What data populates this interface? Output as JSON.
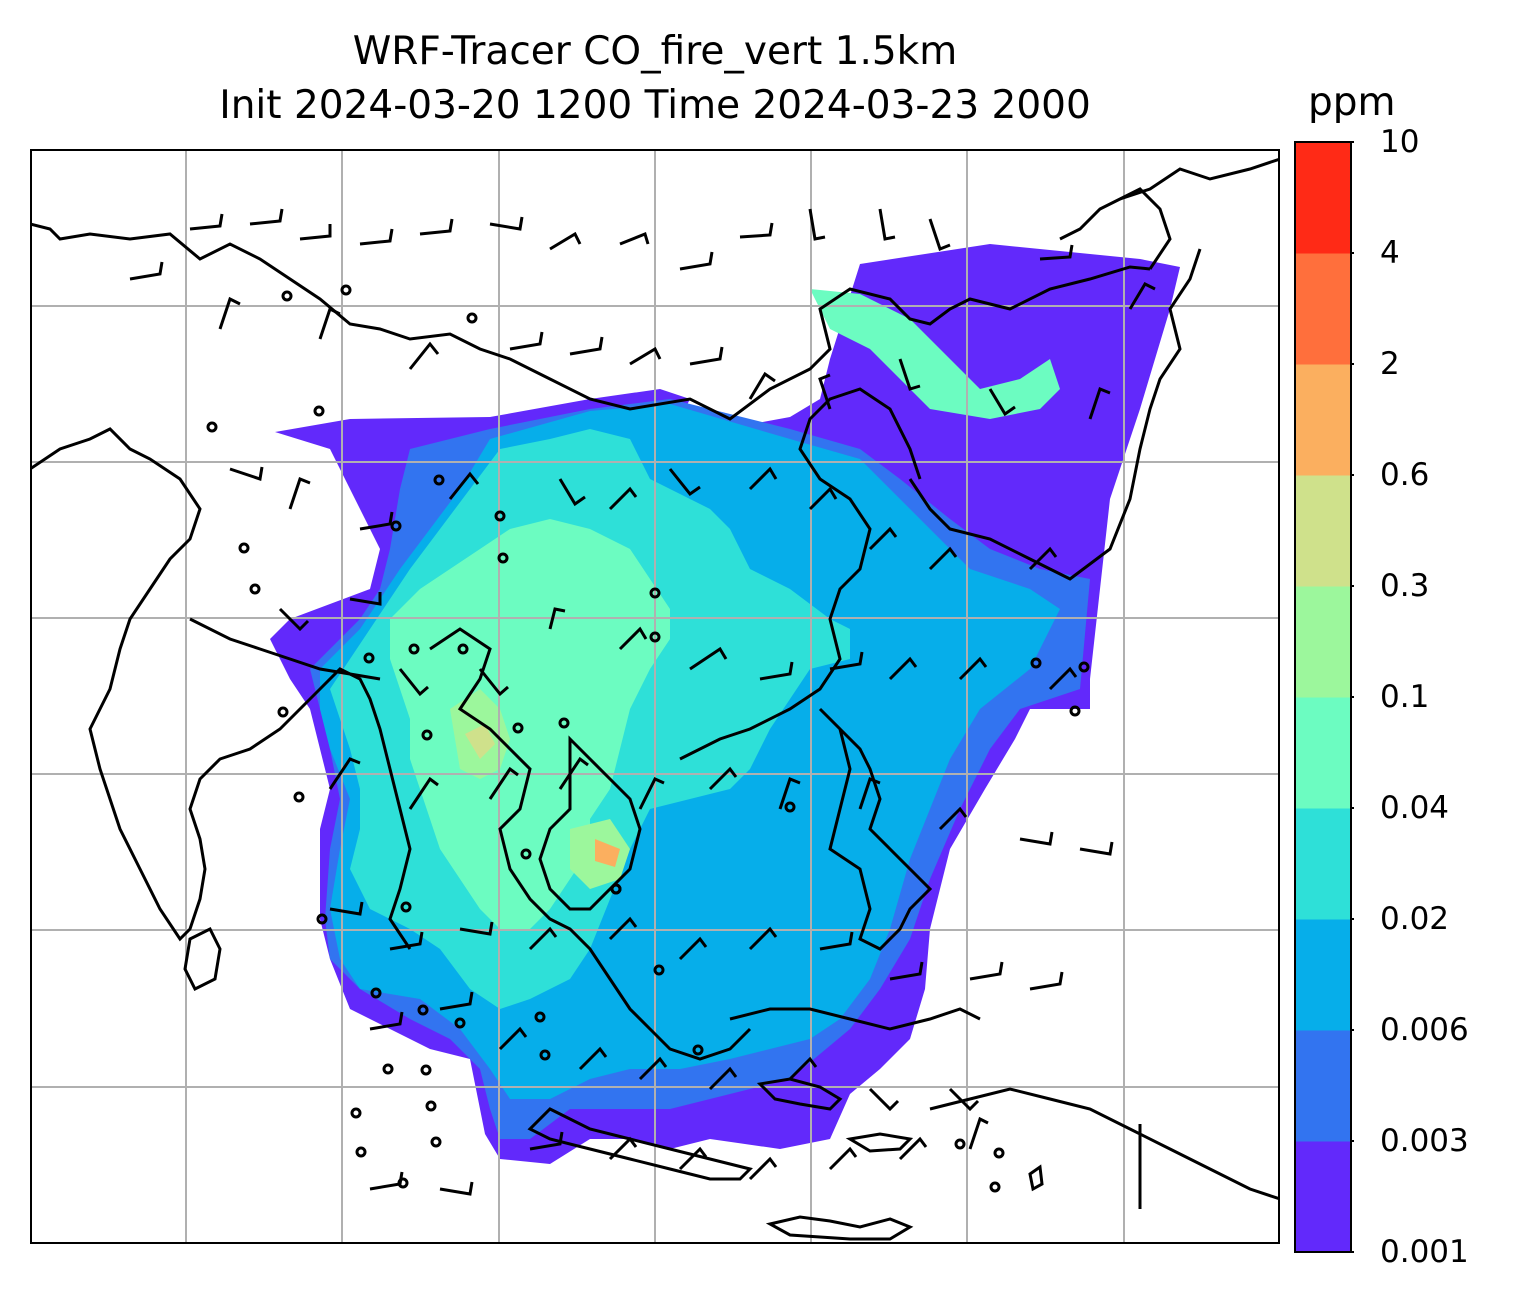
{
  "title": {
    "line1": "WRF-Tracer CO_fire_vert 1.5km",
    "line2": "Init 2024-03-20 1200 Time 2024-03-23 2000"
  },
  "colorbar": {
    "unit": "ppm",
    "ticks": [
      "0.001",
      "0.003",
      "0.006",
      "0.02",
      "0.04",
      "0.1",
      "0.3",
      "0.6",
      "2",
      "4",
      "10"
    ],
    "colors": [
      "#6229fb",
      "#3274f0",
      "#06aeea",
      "#2ee0d8",
      "#6cfcc1",
      "#9cf79c",
      "#cfe18b",
      "#fbaf5f",
      "#ff6f3c",
      "#ff2a16"
    ]
  },
  "map": {
    "grid": "on",
    "background_color": "#ffffff",
    "coastline_color": "#000000",
    "grid_color": "#b0b0b0"
  }
}
